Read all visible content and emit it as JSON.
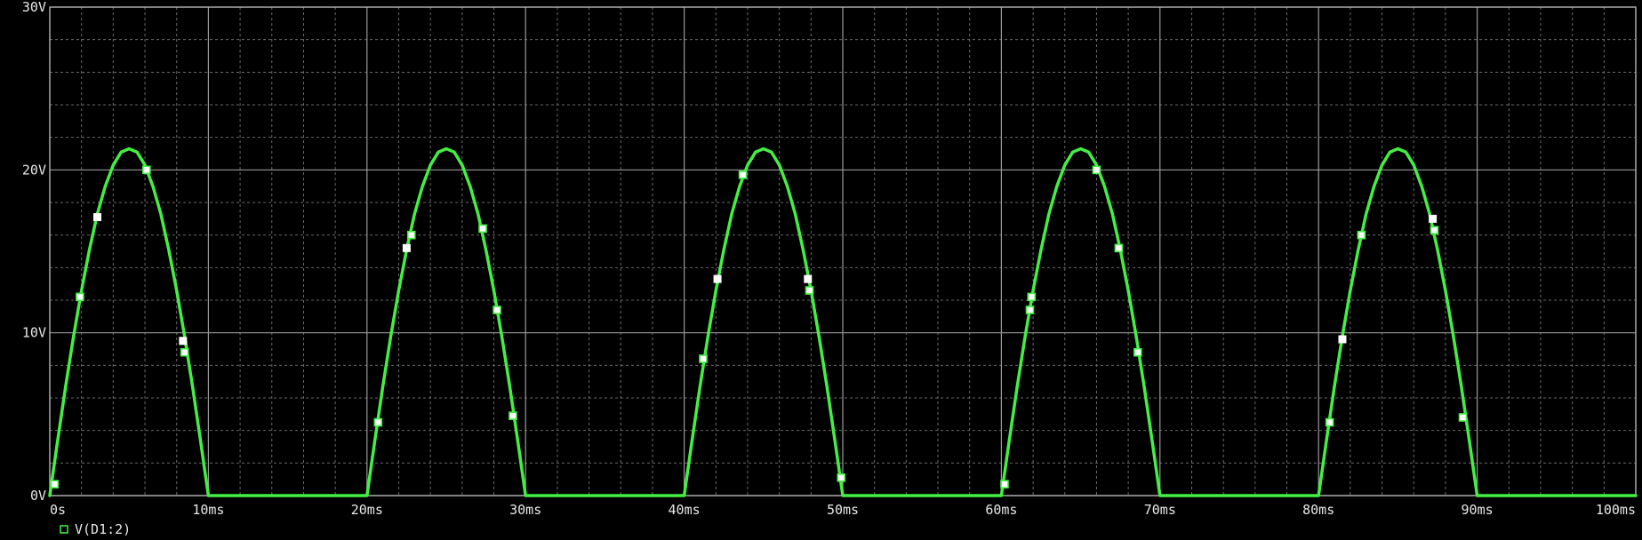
{
  "chart_data": {
    "type": "line",
    "title": "",
    "xlabel": "",
    "ylabel": "",
    "xlim": [
      0,
      100
    ],
    "ylim": [
      0,
      30
    ],
    "x_unit": "ms",
    "y_unit": "V",
    "x_ticks": [
      0,
      10,
      20,
      30,
      40,
      50,
      60,
      70,
      80,
      90,
      100
    ],
    "x_tick_labels": [
      "0s",
      "10ms",
      "20ms",
      "30ms",
      "40ms",
      "50ms",
      "60ms",
      "70ms",
      "80ms",
      "90ms",
      "100ms"
    ],
    "y_ticks": [
      0,
      10,
      20,
      30
    ],
    "y_tick_labels": [
      "0V",
      "10V",
      "20V",
      "30V"
    ],
    "grid": true,
    "background": "#000000",
    "legend_position": "bottom-left",
    "series": [
      {
        "name": "V(D1:2)",
        "color": "#44ee44",
        "marker": "square",
        "x": [
          0,
          0.5,
          1,
          1.5,
          2,
          2.5,
          3,
          3.5,
          4,
          4.5,
          5,
          5.5,
          6,
          6.5,
          7,
          7.5,
          8,
          8.5,
          9,
          9.5,
          10,
          12,
          14,
          16,
          18,
          20,
          20.5,
          21,
          21.5,
          22,
          22.5,
          23,
          23.5,
          24,
          24.5,
          25,
          25.5,
          26,
          26.5,
          27,
          27.5,
          28,
          28.5,
          29,
          29.5,
          30,
          32,
          34,
          36,
          38,
          40,
          40.5,
          41,
          41.5,
          42,
          42.5,
          43,
          43.5,
          44,
          44.5,
          45,
          45.5,
          46,
          46.5,
          47,
          47.5,
          48,
          48.5,
          49,
          49.5,
          50,
          52,
          54,
          56,
          58,
          60,
          60.5,
          61,
          61.5,
          62,
          62.5,
          63,
          63.5,
          64,
          64.5,
          65,
          65.5,
          66,
          66.5,
          67,
          67.5,
          68,
          68.5,
          69,
          69.5,
          70,
          72,
          74,
          76,
          78,
          80,
          80.5,
          81,
          81.5,
          82,
          82.5,
          83,
          83.5,
          84,
          84.5,
          85,
          85.5,
          86,
          86.5,
          87,
          87.5,
          88,
          88.5,
          89,
          89.5,
          90,
          92,
          94,
          96,
          98,
          100
        ],
        "y": [
          0,
          3.4,
          6.7,
          9.8,
          12.6,
          15.1,
          17.3,
          19.0,
          20.3,
          21.1,
          21.3,
          21.1,
          20.3,
          19.0,
          17.3,
          15.1,
          12.6,
          9.8,
          6.7,
          3.4,
          0,
          0,
          0,
          0,
          0,
          0,
          3.4,
          6.7,
          9.8,
          12.6,
          15.1,
          17.3,
          19.0,
          20.3,
          21.1,
          21.3,
          21.1,
          20.3,
          19.0,
          17.3,
          15.1,
          12.6,
          9.8,
          6.7,
          3.4,
          0,
          0,
          0,
          0,
          0,
          0,
          3.4,
          6.7,
          9.8,
          12.6,
          15.1,
          17.3,
          19.0,
          20.3,
          21.1,
          21.3,
          21.1,
          20.3,
          19.0,
          17.3,
          15.1,
          12.6,
          9.8,
          6.7,
          3.4,
          0,
          0,
          0,
          0,
          0,
          0,
          3.4,
          6.7,
          9.8,
          12.6,
          15.1,
          17.3,
          19.0,
          20.3,
          21.1,
          21.3,
          21.1,
          20.3,
          19.0,
          17.3,
          15.1,
          12.6,
          9.8,
          6.7,
          3.4,
          0,
          0,
          0,
          0,
          0,
          0,
          3.4,
          6.7,
          9.8,
          12.6,
          15.1,
          17.3,
          19.0,
          20.3,
          21.1,
          21.3,
          21.1,
          20.3,
          19.0,
          17.3,
          15.1,
          12.6,
          9.8,
          6.7,
          3.4,
          0,
          0,
          0,
          0,
          0,
          0
        ],
        "markers": [
          {
            "x": 0.3,
            "y": 0.7
          },
          {
            "x": 1.9,
            "y": 12.2
          },
          {
            "x": 3.0,
            "y": 17.1,
            "filled": true
          },
          {
            "x": 6.1,
            "y": 20.0
          },
          {
            "x": 8.4,
            "y": 9.5,
            "filled": true
          },
          {
            "x": 8.5,
            "y": 8.8
          },
          {
            "x": 20.7,
            "y": 4.5
          },
          {
            "x": 22.5,
            "y": 15.2,
            "filled": true
          },
          {
            "x": 22.8,
            "y": 16.0
          },
          {
            "x": 27.3,
            "y": 16.4
          },
          {
            "x": 28.2,
            "y": 11.4
          },
          {
            "x": 29.2,
            "y": 4.9
          },
          {
            "x": 41.2,
            "y": 8.4
          },
          {
            "x": 42.1,
            "y": 13.3,
            "filled": true
          },
          {
            "x": 43.7,
            "y": 19.7
          },
          {
            "x": 47.8,
            "y": 13.3,
            "filled": true
          },
          {
            "x": 47.9,
            "y": 12.6
          },
          {
            "x": 49.9,
            "y": 1.1
          },
          {
            "x": 60.2,
            "y": 0.7
          },
          {
            "x": 61.8,
            "y": 11.4
          },
          {
            "x": 61.9,
            "y": 12.2
          },
          {
            "x": 66.0,
            "y": 20.0
          },
          {
            "x": 67.4,
            "y": 15.2
          },
          {
            "x": 68.6,
            "y": 8.8
          },
          {
            "x": 80.7,
            "y": 4.5
          },
          {
            "x": 81.5,
            "y": 9.6,
            "filled": true
          },
          {
            "x": 82.7,
            "y": 16.0
          },
          {
            "x": 87.2,
            "y": 17.0,
            "filled": true
          },
          {
            "x": 87.3,
            "y": 16.3
          },
          {
            "x": 89.1,
            "y": 4.8
          }
        ]
      }
    ]
  }
}
